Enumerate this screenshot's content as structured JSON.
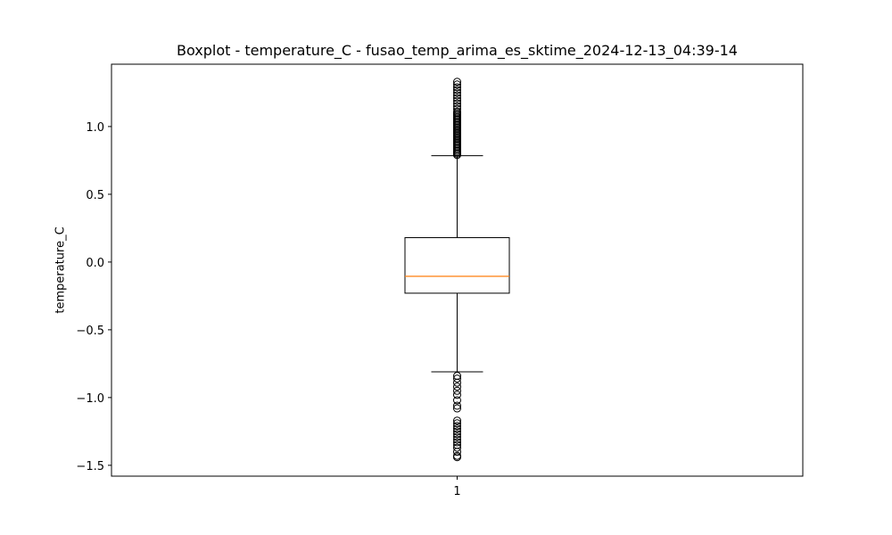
{
  "chart_data": {
    "type": "boxplot",
    "title": "Boxplot - temperature_C - fusao_temp_arima_es_sktime_2024-12-13_04:39-14",
    "xlabel": "",
    "ylabel": "temperature_C",
    "ylim": [
      -1.58,
      1.46
    ],
    "yticks": [
      {
        "value": -1.5,
        "label": "−1.5"
      },
      {
        "value": -1.0,
        "label": "−1.0"
      },
      {
        "value": -0.5,
        "label": "−0.5"
      },
      {
        "value": 0.0,
        "label": "0.0"
      },
      {
        "value": 0.5,
        "label": "0.5"
      },
      {
        "value": 1.0,
        "label": "1.0"
      }
    ],
    "categories": [
      "1"
    ],
    "boxes": [
      {
        "label": "1",
        "q1": -0.23,
        "median": -0.105,
        "q3": 0.18,
        "whisker_low": -0.81,
        "whisker_high": 0.785,
        "outliers": [
          1.33,
          1.31,
          1.29,
          1.27,
          1.25,
          1.23,
          1.21,
          1.19,
          1.17,
          1.15,
          1.13,
          1.11,
          1.1,
          1.09,
          1.08,
          1.07,
          1.06,
          1.05,
          1.04,
          1.03,
          1.02,
          1.01,
          1.0,
          0.99,
          0.98,
          0.97,
          0.96,
          0.95,
          0.94,
          0.93,
          0.92,
          0.91,
          0.9,
          0.89,
          0.88,
          0.87,
          0.86,
          0.85,
          0.84,
          0.83,
          0.82,
          0.81,
          0.8,
          0.79,
          -0.84,
          -0.86,
          -0.89,
          -0.92,
          -0.95,
          -0.98,
          -1.02,
          -1.06,
          -1.08,
          -1.17,
          -1.19,
          -1.21,
          -1.23,
          -1.25,
          -1.27,
          -1.29,
          -1.31,
          -1.33,
          -1.35,
          -1.37,
          -1.4,
          -1.43,
          -1.44
        ]
      }
    ],
    "colors": {
      "median": "#ff7f0e",
      "box": "#000000"
    }
  }
}
